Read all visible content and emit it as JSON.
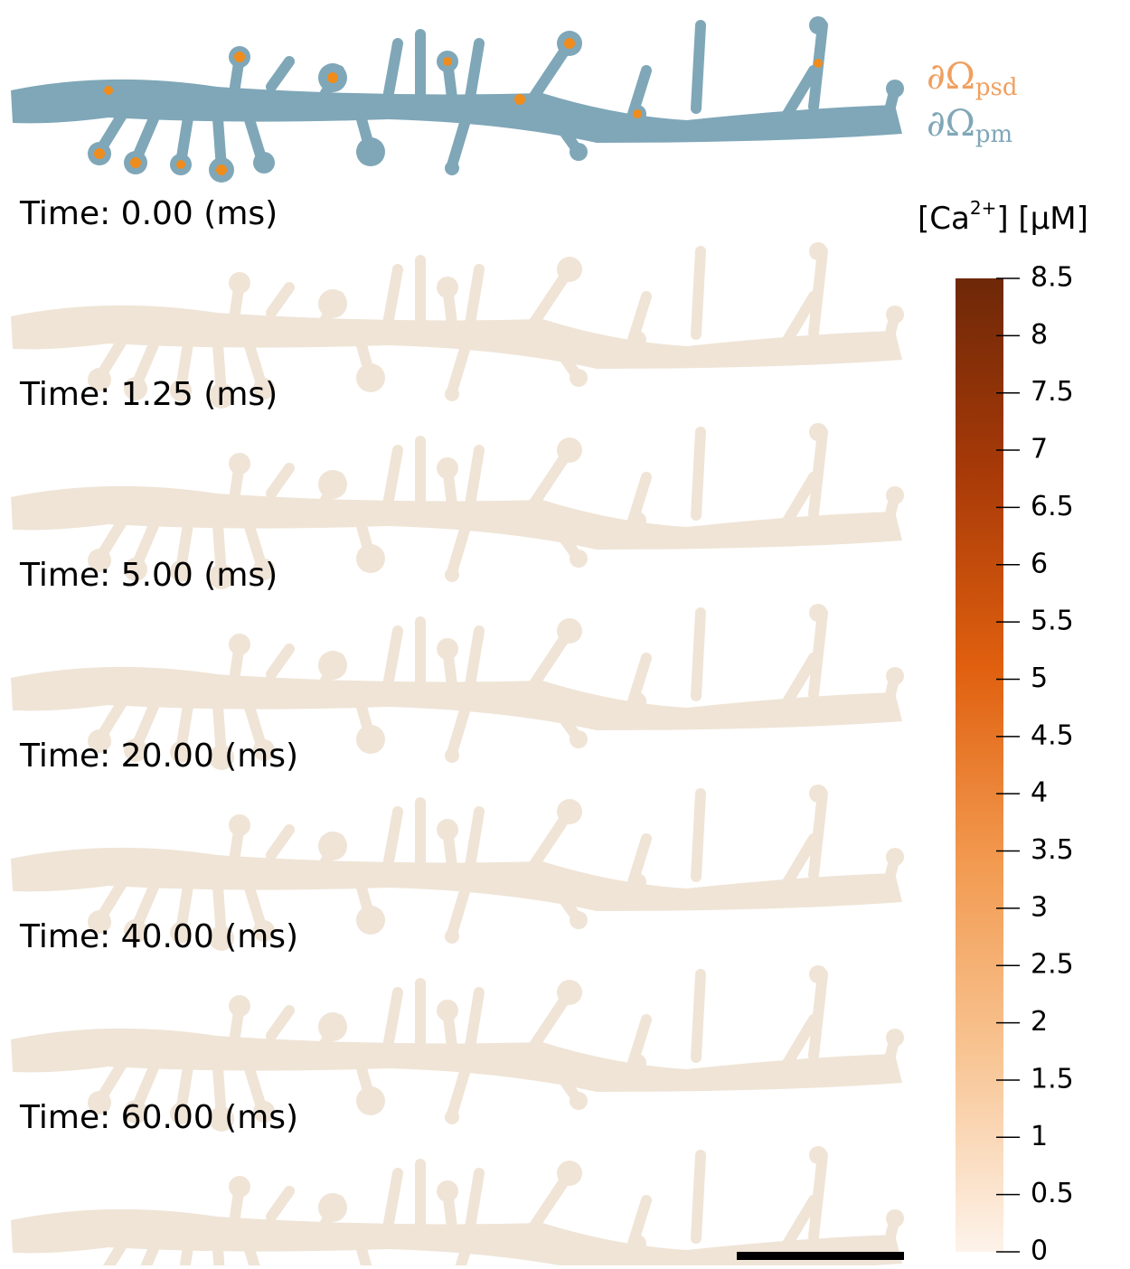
{
  "legend": [
    {
      "symbol": "∂Ω",
      "subscript": "psd",
      "color": "#f0a060"
    },
    {
      "symbol": "∂Ω",
      "subscript": "pm",
      "color": "#7fa7b8"
    }
  ],
  "panels": [
    {
      "label": "Time: 0.00 (ms)"
    },
    {
      "label": "Time: 1.25 (ms)"
    },
    {
      "label": "Time: 5.00 (ms)"
    },
    {
      "label": "Time: 20.00 (ms)"
    },
    {
      "label": "Time: 40.00 (ms)"
    },
    {
      "label": "Time: 60.00 (ms)"
    }
  ],
  "colorbar": {
    "title": {
      "prefix": "[Ca",
      "superscript": "2+",
      "suffix": "] [μM]"
    },
    "lim": [
      0,
      8.5
    ],
    "ticks": [
      0,
      0.5,
      1,
      1.5,
      2,
      2.5,
      3,
      3.5,
      4,
      4.5,
      5,
      5.5,
      6,
      6.5,
      7,
      7.5,
      8,
      8.5
    ],
    "colors": [
      "#fdf3ea",
      "#f8c594",
      "#f29a50",
      "#e0600f",
      "#a83a08",
      "#6e2808"
    ]
  }
}
